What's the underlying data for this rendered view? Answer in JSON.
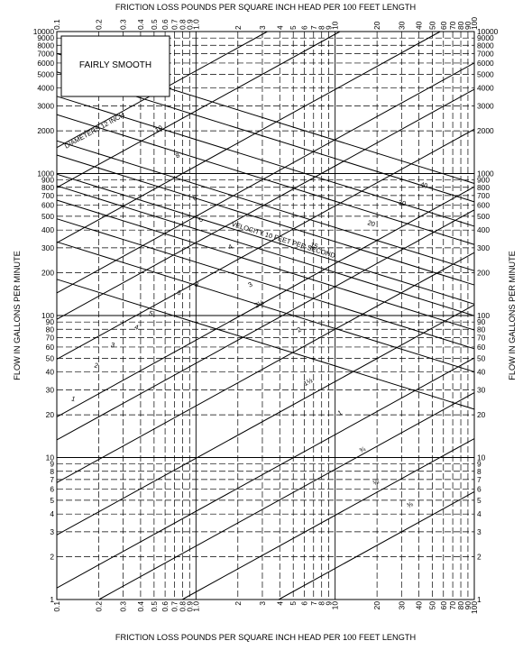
{
  "chart_data": {
    "type": "line",
    "title": "",
    "xlabel": "FRICTION LOSS POUNDS PER SQUARE INCH HEAD PER 100 FEET LENGTH",
    "ylabel": "FLOW IN GALLONS PER MINUTE",
    "x_scale": "log",
    "y_scale": "log",
    "xlim": [
      0.1,
      100
    ],
    "ylim": [
      1,
      10000
    ],
    "grid": true,
    "x_ticks": [
      0.1,
      0.2,
      0.3,
      0.4,
      0.5,
      0.6,
      0.7,
      0.8,
      0.9,
      1.0,
      2,
      3,
      4,
      5,
      6,
      7,
      8,
      9,
      10,
      20,
      30,
      40,
      50,
      60,
      70,
      80,
      90,
      100
    ],
    "x_tick_labels": [
      "0.1",
      "0.2",
      "0.3",
      "0.4",
      "0.5",
      "0.6",
      "0.7",
      "0.8",
      "0.9",
      "1.0",
      "2",
      "3",
      "4",
      "5",
      "6",
      "7",
      "8",
      "9",
      "10",
      "20",
      "30",
      "40",
      "50",
      "60",
      "70",
      "80",
      "90",
      "100"
    ],
    "y_ticks": [
      1,
      2,
      3,
      4,
      5,
      6,
      7,
      8,
      9,
      10,
      20,
      30,
      40,
      50,
      60,
      70,
      80,
      90,
      100,
      200,
      300,
      400,
      500,
      600,
      700,
      800,
      900,
      1000,
      2000,
      3000,
      4000,
      5000,
      6000,
      7000,
      8000,
      9000,
      10000
    ],
    "y_tick_labels": [
      "1",
      "2",
      "3",
      "4",
      "5",
      "6",
      "7",
      "8",
      "9",
      "10",
      "20",
      "30",
      "40",
      "50",
      "60",
      "70",
      "80",
      "90",
      "100",
      "200",
      "300",
      "400",
      "500",
      "600",
      "700",
      "800",
      "900",
      "1000",
      "2000",
      "3000",
      "4000",
      "5000",
      "6000",
      "7000",
      "8000",
      "9000",
      "10000"
    ],
    "legend": {
      "text": "FAIRLY SMOOTH",
      "placement": "top-left"
    },
    "diameter_lines": {
      "title": "DIAMETERS",
      "unit": "INCH",
      "slope": 0.54,
      "series": [
        {
          "name": "12",
          "ref_x": 0.25,
          "ref_y": 2500,
          "label_x": 0.3,
          "label_y": 2700
        },
        {
          "name": "10",
          "ref_x": 0.5,
          "ref_y": 1900,
          "label_x": 0.55,
          "label_y": 2000
        },
        {
          "name": "8",
          "ref_x": 0.8,
          "ref_y": 1000,
          "label_x": 0.75,
          "label_y": 1300
        },
        {
          "name": "6",
          "ref_x": 1.0,
          "ref_y": 500,
          "label_x": 1.0,
          "label_y": 650
        },
        {
          "name": "5",
          "ref_x": 1.2,
          "ref_y": 360,
          "label_x": 1.1,
          "label_y": 460
        },
        {
          "name": "4",
          "ref_x": 1.6,
          "ref_y": 220,
          "label_x": 1.8,
          "label_y": 295
        },
        {
          "name": "3",
          "ref_x": 2.5,
          "ref_y": 110,
          "label_x": 2.5,
          "label_y": 160
        },
        {
          "name": "2½",
          "ref_x": 2.9,
          "ref_y": 82,
          "label_x": 2.9,
          "label_y": 117
        },
        {
          "name": "2",
          "ref_x": 5.5,
          "ref_y": 58,
          "label_x": 5.6,
          "label_y": 77
        },
        {
          "name": "1½",
          "ref_x": 6.0,
          "ref_y": 26,
          "label_x": 6.5,
          "label_y": 33
        },
        {
          "name": "1",
          "ref_x": 12,
          "ref_y": 16,
          "label_x": 11,
          "label_y": 20
        },
        {
          "name": "¾",
          "ref_x": 20,
          "ref_y": 12,
          "label_x": 16,
          "label_y": 11
        },
        {
          "name": "½",
          "ref_x": 22,
          "ref_y": 6,
          "label_x": 20,
          "label_y": 6.5
        },
        {
          "name": "⅜",
          "ref_x": 40,
          "ref_y": 3.5,
          "label_x": 35,
          "label_y": 4.5
        }
      ]
    },
    "velocity_lines": {
      "title": "VELOCITY",
      "unit": "FEET PER SECOND",
      "slope": -0.305,
      "series": [
        {
          "name": "1",
          "ref_x": 0.1,
          "ref_y": 180,
          "label_x": 0.13,
          "label_y": 25
        },
        {
          "name": "2",
          "ref_x": 0.1,
          "ref_y": 330,
          "label_x": 0.19,
          "label_y": 43
        },
        {
          "name": "3",
          "ref_x": 0.1,
          "ref_y": 480,
          "label_x": 0.25,
          "label_y": 60
        },
        {
          "name": "4",
          "ref_x": 0.1,
          "ref_y": 650,
          "label_x": 0.37,
          "label_y": 80
        },
        {
          "name": "5",
          "ref_x": 0.1,
          "ref_y": 820,
          "label_x": 0.47,
          "label_y": 100
        },
        {
          "name": "6",
          "ref_x": 0.1,
          "ref_y": 990,
          "label_x": 0.75,
          "label_y": 140
        },
        {
          "name": "8",
          "ref_x": 0.1,
          "ref_y": 1350,
          "label_x": 1.0,
          "label_y": 160
        },
        {
          "name": "10",
          "ref_x": 0.1,
          "ref_y": 1700,
          "label_x": 2.5,
          "label_y": 700
        },
        {
          "name": "15",
          "ref_x": 0.1,
          "ref_y": 2600,
          "label_x": 7.0,
          "label_y": 300
        },
        {
          "name": "20",
          "ref_x": 0.1,
          "ref_y": 3500,
          "label_x": 18,
          "label_y": 430
        },
        {
          "name": "30",
          "ref_x": 0.1,
          "ref_y": 5200,
          "label_x": 30,
          "label_y": 600
        },
        {
          "name": "40",
          "ref_x": 0.1,
          "ref_y": 7000,
          "label_x": 43,
          "label_y": 800
        }
      ]
    }
  }
}
